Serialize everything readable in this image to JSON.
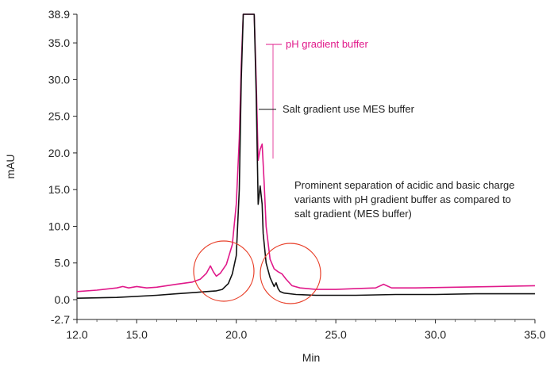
{
  "chart_data": {
    "type": "line",
    "xlabel": "Min",
    "ylabel": "mAU",
    "xlim": [
      12.0,
      35.0
    ],
    "ylim": [
      -2.7,
      38.9
    ],
    "x_ticks": [
      "12.0",
      "15.0",
      "20.0",
      "25.0",
      "30.0",
      "35.0"
    ],
    "y_ticks": [
      "38.9",
      "35.0",
      "30.0",
      "25.0",
      "20.0",
      "15.0",
      "10.0",
      "5.0",
      "0.0",
      "-2.7"
    ],
    "x_tick_values": [
      12.0,
      15.0,
      20.0,
      25.0,
      30.0,
      35.0
    ],
    "y_tick_values": [
      38.9,
      35.0,
      30.0,
      25.0,
      20.0,
      15.0,
      10.0,
      5.0,
      0.0,
      -2.7
    ],
    "series": [
      {
        "name": "pH gradient buffer",
        "color": "#e0198a",
        "x": [
          12.0,
          13.0,
          14.0,
          14.3,
          14.6,
          15.0,
          15.5,
          16.0,
          17.0,
          17.8,
          18.2,
          18.5,
          18.7,
          18.85,
          19.0,
          19.2,
          19.5,
          19.8,
          20.0,
          20.15,
          20.25,
          20.35,
          20.45,
          20.9,
          21.0,
          21.1,
          21.2,
          21.3,
          21.4,
          21.5,
          21.7,
          21.9,
          22.1,
          22.3,
          22.5,
          22.8,
          23.2,
          24.0,
          25.0,
          26.0,
          27.0,
          27.4,
          27.8,
          29.0,
          31.0,
          33.0,
          35.0
        ],
        "y": [
          1.1,
          1.3,
          1.6,
          1.8,
          1.6,
          1.8,
          1.6,
          1.7,
          2.1,
          2.4,
          2.8,
          3.6,
          4.6,
          3.8,
          3.2,
          3.6,
          4.8,
          7.5,
          13.0,
          22.0,
          32.0,
          38.9,
          38.9,
          38.9,
          30.0,
          19.0,
          20.5,
          21.2,
          16.0,
          10.0,
          5.5,
          4.2,
          3.8,
          3.5,
          2.8,
          1.9,
          1.6,
          1.4,
          1.4,
          1.5,
          1.6,
          2.1,
          1.6,
          1.6,
          1.7,
          1.8,
          1.9
        ]
      },
      {
        "name": "Salt gradient use MES buffer",
        "color": "#111111",
        "x": [
          12.0,
          14.0,
          16.0,
          17.0,
          17.5,
          18.0,
          18.5,
          19.0,
          19.3,
          19.6,
          19.8,
          20.0,
          20.15,
          20.25,
          20.35,
          20.45,
          20.9,
          21.0,
          21.1,
          21.2,
          21.3,
          21.35,
          21.5,
          21.7,
          21.9,
          22.0,
          22.1,
          22.2,
          22.4,
          23.0,
          24.0,
          26.0,
          28.0,
          30.0,
          32.0,
          35.0
        ],
        "y": [
          0.2,
          0.3,
          0.6,
          0.8,
          0.9,
          1.0,
          1.1,
          1.2,
          1.4,
          2.2,
          3.5,
          6.0,
          15.0,
          30.0,
          38.9,
          38.9,
          38.9,
          28.0,
          13.0,
          15.5,
          13.0,
          9.0,
          5.0,
          3.0,
          1.8,
          2.3,
          1.5,
          1.1,
          0.9,
          0.7,
          0.6,
          0.6,
          0.7,
          0.7,
          0.8,
          0.8
        ]
      }
    ]
  },
  "annotations": {
    "ph_label": "pH gradient buffer",
    "salt_label": "Salt gradient use MES buffer",
    "note_lines": [
      "Prominent separation of acidic and basic charge",
      "variants with pH gradient buffer as compared to",
      "salt gradient (MES buffer)"
    ],
    "highlight_color": "#e8402a"
  }
}
